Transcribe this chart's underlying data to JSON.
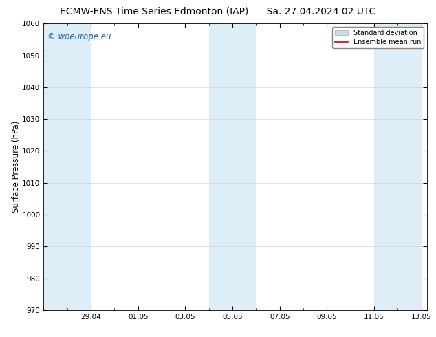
{
  "title_left": "ECMW-ENS Time Series Edmonton (IAP)",
  "title_right": "Sa. 27.04.2024 02 UTC",
  "ylabel": "Surface Pressure (hPa)",
  "ylim": [
    970,
    1060
  ],
  "yticks": [
    970,
    980,
    990,
    1000,
    1010,
    1020,
    1030,
    1040,
    1050,
    1060
  ],
  "xtick_labels": [
    "29.04",
    "01.05",
    "03.05",
    "05.05",
    "07.05",
    "09.05",
    "11.05",
    "13.05"
  ],
  "watermark": "© woeurope.eu",
  "watermark_color": "#1a5fb4",
  "bg_color": "#ffffff",
  "plot_bg_color": "#ffffff",
  "shaded_band_color": "#ddeef8",
  "legend_label_std": "Standard deviation",
  "legend_label_ens": "Ensemble mean run",
  "legend_std_facecolor": "#c8dce8",
  "legend_std_edgecolor": "#aaaaaa",
  "legend_ens_color": "#cc0000",
  "title_fontsize": 10,
  "tick_fontsize": 7.5,
  "ylabel_fontsize": 8.5,
  "watermark_fontsize": 8.5,
  "figsize": [
    6.34,
    4.9
  ],
  "dpi": 100
}
